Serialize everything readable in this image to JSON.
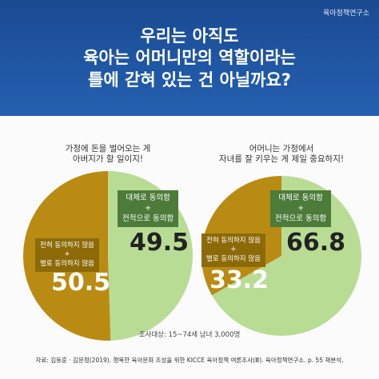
{
  "header": {
    "title": "우리는 아직도\n육아는 어머니만의 역할이라는\n틀에 갇혀 있는 건 아닐까요?",
    "logo": "육아정책연구소"
  },
  "chart_data": [
    {
      "type": "pie",
      "title": "가정에 돈을 벌어오는 게\n아버지가 할 일이지!",
      "categories": [
        "대체로 동의함\n+\n전적으로 동의함",
        "전혀 동의하지 않음\n+\n별로 동의하지 않음"
      ],
      "values": [
        49.5,
        50.5
      ],
      "colors": [
        "#b9dc95",
        "#b98b12"
      ]
    },
    {
      "type": "pie",
      "title": "어머니는 가정에서\n자녀를 잘 키우는 게 제일 중요하지!",
      "categories": [
        "대체로 동의함\n+\n전적으로 동의함",
        "전혀 동의하지 않음\n+\n별로 동의하지 않음"
      ],
      "values": [
        66.8,
        33.2
      ],
      "colors": [
        "#b9dc95",
        "#b98b12"
      ]
    }
  ],
  "note": "조사대상: 15~74세 남녀 3,000명",
  "source": "자료: 김동훈 · 김문정(2019). 행복한 육아문화 조성을 위한 KICCE 육아정책 여론조사(Ⅲ). 육아정책연구소. p. 55 재분석."
}
